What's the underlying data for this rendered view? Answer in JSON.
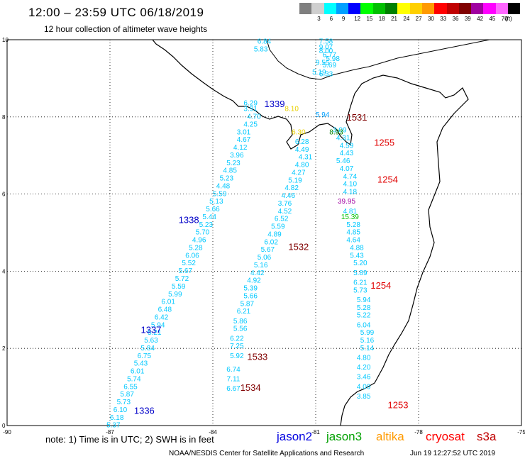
{
  "title": "12:00 – 23:59 UTC 06/18/2019",
  "subtitle": "12 hour collection of altimeter wave heights",
  "colorbar": {
    "unit": "(ft)",
    "bins": [
      {
        "color": "#7f7f7f",
        "label": ""
      },
      {
        "color": "#cfcfcf",
        "label": "3"
      },
      {
        "color": "#00ffff",
        "label": "6"
      },
      {
        "color": "#00a0ff",
        "label": "9"
      },
      {
        "color": "#0000ff",
        "label": "12"
      },
      {
        "color": "#00ff00",
        "label": "15"
      },
      {
        "color": "#00c000",
        "label": "18"
      },
      {
        "color": "#008000",
        "label": "21"
      },
      {
        "color": "#ffff00",
        "label": "24"
      },
      {
        "color": "#ffd000",
        "label": "27"
      },
      {
        "color": "#ff9a00",
        "label": "30"
      },
      {
        "color": "#ff0000",
        "label": "33"
      },
      {
        "color": "#c00000",
        "label": "36"
      },
      {
        "color": "#800000",
        "label": "39"
      },
      {
        "color": "#a000a0",
        "label": "42"
      },
      {
        "color": "#ff00ff",
        "label": "45"
      },
      {
        "color": "#ff66ff",
        "label": "70"
      },
      {
        "color": "#000000",
        "label": ""
      }
    ]
  },
  "map": {
    "lon_range": [
      -90,
      -75
    ],
    "lat_range": [
      0,
      10
    ],
    "x_ticks": [
      "-90",
      "-87",
      "-84",
      "-81",
      "-78",
      "-75"
    ],
    "y_ticks": [
      "0",
      "2",
      "4",
      "6",
      "8",
      "10"
    ]
  },
  "tracks": [
    {
      "color": "#00c8ff",
      "points": [
        [
          "6.84",
          -82.5,
          9.9
        ],
        [
          "5.83",
          -82.6,
          9.7
        ],
        [
          "7.58",
          -80.7,
          9.9
        ],
        [
          "9.07",
          -80.7,
          9.75
        ],
        [
          "8.00",
          -80.7,
          9.65
        ],
        [
          "6.77",
          -80.6,
          9.55
        ],
        [
          "5.98",
          -80.5,
          9.45
        ],
        [
          "9.55",
          -80.8,
          9.35
        ],
        [
          "5.69",
          -80.6,
          9.28
        ],
        [
          "5.19",
          -80.9,
          9.1
        ],
        [
          "6.33",
          -80.7,
          9.05
        ]
      ]
    },
    {
      "color": "#00c8ff",
      "points": [
        [
          "6.29",
          -82.9,
          8.3
        ],
        [
          "3.91",
          -82.9,
          8.15
        ],
        [
          "4.70",
          -82.8,
          7.95
        ],
        [
          "4.25",
          -82.9,
          7.75
        ],
        [
          "3.01",
          -83.1,
          7.55
        ],
        [
          "4.67",
          -83.1,
          7.35
        ],
        [
          "4.12",
          -83.2,
          7.15
        ],
        [
          "3.96",
          -83.3,
          6.95
        ],
        [
          "5.23",
          -83.4,
          6.75
        ],
        [
          "4.85",
          -83.5,
          6.55
        ],
        [
          "5.23",
          -83.6,
          6.35
        ],
        [
          "4.48",
          -83.7,
          6.15
        ],
        [
          "5.59",
          -83.8,
          5.95
        ],
        [
          "5.13",
          -83.9,
          5.75
        ],
        [
          "5.66",
          -84.0,
          5.55
        ],
        [
          "5.44",
          -84.1,
          5.35
        ],
        [
          "5.23",
          -84.2,
          5.15
        ],
        [
          "5.70",
          -84.3,
          4.95
        ],
        [
          "4.96",
          -84.4,
          4.75
        ],
        [
          "5.28",
          -84.5,
          4.55
        ],
        [
          "6.06",
          -84.6,
          4.35
        ],
        [
          "5.52",
          -84.7,
          4.15
        ],
        [
          "5.67",
          -84.8,
          3.95
        ],
        [
          "5.72",
          -84.9,
          3.75
        ],
        [
          "5.59",
          -85.0,
          3.55
        ],
        [
          "5.99",
          -85.1,
          3.35
        ],
        [
          "6.01",
          -85.3,
          3.15
        ],
        [
          "6.48",
          -85.4,
          2.95
        ],
        [
          "6.42",
          -85.5,
          2.75
        ],
        [
          "5.94",
          -85.6,
          2.55
        ],
        [
          "5.21",
          -85.7,
          2.35
        ],
        [
          "5.63",
          -85.8,
          2.15
        ],
        [
          "5.84",
          -85.9,
          1.95
        ],
        [
          "6.75",
          -86.0,
          1.75
        ],
        [
          "5.43",
          -86.1,
          1.55
        ],
        [
          "6.01",
          -86.2,
          1.35
        ],
        [
          "5.74",
          -86.3,
          1.15
        ],
        [
          "6.55",
          -86.4,
          0.95
        ],
        [
          "5.87",
          -86.5,
          0.75
        ],
        [
          "5.73",
          -86.6,
          0.55
        ],
        [
          "6.10",
          -86.7,
          0.35
        ],
        [
          "6.18",
          -86.8,
          0.15
        ],
        [
          "5.37",
          -86.9,
          -0.05
        ]
      ]
    },
    {
      "color": "#00c8ff",
      "points": [
        [
          "6.28",
          -81.4,
          7.3
        ],
        [
          "4.49",
          -81.4,
          7.1
        ],
        [
          "4.31",
          -81.3,
          6.9
        ],
        [
          "4.80",
          -81.4,
          6.7
        ],
        [
          "4.27",
          -81.5,
          6.5
        ],
        [
          "5.19",
          -81.6,
          6.3
        ],
        [
          "4.82",
          -81.7,
          6.1
        ],
        [
          "4.46",
          -81.8,
          5.9
        ],
        [
          "3.76",
          -81.9,
          5.7
        ],
        [
          "4.52",
          -81.9,
          5.5
        ],
        [
          "6.52",
          -82.0,
          5.3
        ],
        [
          "5.59",
          -82.1,
          5.1
        ],
        [
          "4.89",
          -82.2,
          4.9
        ],
        [
          "6.02",
          -82.3,
          4.7
        ],
        [
          "5.67",
          -82.4,
          4.5
        ],
        [
          "5.06",
          -82.5,
          4.3
        ],
        [
          "5.16",
          -82.6,
          4.1
        ],
        [
          "4.42",
          -82.7,
          3.9
        ],
        [
          "4.92",
          -82.8,
          3.7
        ],
        [
          "5.39",
          -82.9,
          3.5
        ],
        [
          "5.66",
          -82.9,
          3.3
        ],
        [
          "5.87",
          -83.0,
          3.1
        ],
        [
          "6.21",
          -83.1,
          2.9
        ],
        [
          "5.86",
          -83.2,
          2.65
        ],
        [
          "5.56",
          -83.2,
          2.45
        ],
        [
          "6.22",
          -83.3,
          2.2
        ],
        [
          "7.25",
          -83.3,
          2.0
        ],
        [
          "5.92",
          -83.3,
          1.75
        ],
        [
          "6.74",
          -83.4,
          1.4
        ],
        [
          "7.11",
          -83.4,
          1.15
        ],
        [
          "6.67",
          -83.4,
          0.9
        ]
      ]
    },
    {
      "color": "#00c8ff",
      "points": [
        [
          "3.09",
          -80.3,
          7.6
        ],
        [
          "4.31",
          -80.2,
          7.4
        ],
        [
          "4.59",
          -80.1,
          7.2
        ],
        [
          "4.43",
          -80.1,
          7.0
        ],
        [
          "5.46",
          -80.2,
          6.8
        ],
        [
          "4.07",
          -80.1,
          6.6
        ],
        [
          "4.74",
          -80.0,
          6.4
        ],
        [
          "4.10",
          -80.0,
          6.2
        ],
        [
          "4.18",
          -80.0,
          6.0
        ],
        [
          "4.81",
          -80.0,
          5.5
        ],
        [
          "5.28",
          -79.9,
          5.15
        ],
        [
          "4.85",
          -79.9,
          4.95
        ],
        [
          "4.64",
          -79.9,
          4.75
        ],
        [
          "4.88",
          -79.8,
          4.55
        ],
        [
          "5.43",
          -79.8,
          4.35
        ],
        [
          "5.20",
          -79.7,
          4.15
        ],
        [
          "5.89",
          -79.7,
          3.9
        ],
        [
          "6.21",
          -79.7,
          3.65
        ],
        [
          "5.73",
          -79.7,
          3.45
        ],
        [
          "5.94",
          -79.6,
          3.2
        ],
        [
          "5.28",
          -79.6,
          3.0
        ],
        [
          "5.22",
          -79.6,
          2.8
        ],
        [
          "6.04",
          -79.6,
          2.55
        ],
        [
          "5.99",
          -79.5,
          2.35
        ],
        [
          "5.16",
          -79.5,
          2.15
        ],
        [
          "5.14",
          -79.5,
          1.95
        ],
        [
          "4.80",
          -79.6,
          1.7
        ],
        [
          "4.20",
          -79.6,
          1.45
        ],
        [
          "3.46",
          -79.6,
          1.2
        ],
        [
          "4.09",
          -79.6,
          0.95
        ],
        [
          "3.85",
          -79.6,
          0.7
        ]
      ]
    }
  ],
  "special_points": [
    {
      "text": "8.10",
      "color": "#e8d000",
      "lon": -81.7,
      "lat": 8.15
    },
    {
      "text": "5.94",
      "color": "#00a0ff",
      "lon": -80.8,
      "lat": 8.0
    },
    {
      "text": "6.30",
      "color": "#e8d000",
      "lon": -81.5,
      "lat": 7.55
    },
    {
      "text": "8.93",
      "color": "#008000",
      "lon": -80.4,
      "lat": 7.55
    },
    {
      "text": "39.95",
      "color": "#a000a0",
      "lon": -80.1,
      "lat": 5.75
    },
    {
      "text": "15.39",
      "color": "#00c000",
      "lon": -80.0,
      "lat": 5.35
    }
  ],
  "pass_ids": [
    {
      "text": "1339",
      "color": "#0000c8",
      "lon": -82.2,
      "lat": 8.25
    },
    {
      "text": "1531",
      "color": "#800000",
      "lon": -79.8,
      "lat": 7.9
    },
    {
      "text": "1255",
      "color": "#e00000",
      "lon": -79.0,
      "lat": 7.25
    },
    {
      "text": "1254",
      "color": "#e00000",
      "lon": -78.9,
      "lat": 6.3
    },
    {
      "text": "1338",
      "color": "#0000c8",
      "lon": -84.7,
      "lat": 5.25
    },
    {
      "text": "1532",
      "color": "#800000",
      "lon": -81.5,
      "lat": 4.55
    },
    {
      "text": "1254",
      "color": "#e00000",
      "lon": -79.1,
      "lat": 3.55
    },
    {
      "text": "1337",
      "color": "#0000c8",
      "lon": -85.8,
      "lat": 2.4
    },
    {
      "text": "1533",
      "color": "#800000",
      "lon": -82.7,
      "lat": 1.7
    },
    {
      "text": "1534",
      "color": "#800000",
      "lon": -82.9,
      "lat": 0.9
    },
    {
      "text": "1253",
      "color": "#e00000",
      "lon": -78.6,
      "lat": 0.45
    },
    {
      "text": "1336",
      "color": "#0000c8",
      "lon": -86.0,
      "lat": 0.3
    }
  ],
  "footer": {
    "note": "note:  1) Time is in UTC;  2) SWH is in feet",
    "legend": [
      {
        "label": "jason2",
        "color": "#0000e0"
      },
      {
        "label": "jason3",
        "color": "#00a000"
      },
      {
        "label": "altika",
        "color": "#ff9a00"
      },
      {
        "label": "cryosat",
        "color": "#ff0000"
      },
      {
        "label": "s3a",
        "color": "#c00000"
      }
    ],
    "credit": "NOAA/NESDIS Center for Satellite Applications and Research",
    "timestamp": "Jun 19 12:27:52 UTC 2019"
  }
}
